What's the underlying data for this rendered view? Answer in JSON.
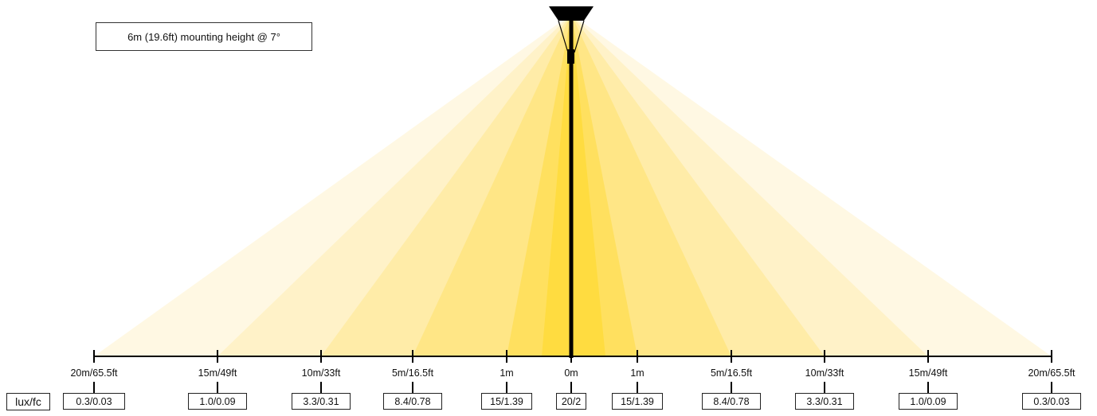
{
  "caption": "6m (19.6ft) mounting height @ 7°",
  "unit_label": "lux/fc",
  "positions": [
    {
      "distance": "20m/65.5ft",
      "value": "0.3/0.03"
    },
    {
      "distance": "15m/49ft",
      "value": "1.0/0.09"
    },
    {
      "distance": "10m/33ft",
      "value": "3.3/0.31"
    },
    {
      "distance": "5m/16.5ft",
      "value": "8.4/0.78"
    },
    {
      "distance": "1m",
      "value": "15/1.39"
    },
    {
      "distance": "0m",
      "value": "20/2"
    },
    {
      "distance": "1m",
      "value": "15/1.39"
    },
    {
      "distance": "5m/16.5ft",
      "value": "8.4/0.78"
    },
    {
      "distance": "10m/33ft",
      "value": "3.3/0.31"
    },
    {
      "distance": "15m/49ft",
      "value": "1.0/0.09"
    },
    {
      "distance": "20m/65.5ft",
      "value": "0.3/0.03"
    }
  ],
  "colors": {
    "beam_bands": [
      "#fff8e3",
      "#fff2c8",
      "#ffeca8",
      "#ffe686",
      "#ffe05f",
      "#ffdc40"
    ],
    "pole": "#000000"
  }
}
